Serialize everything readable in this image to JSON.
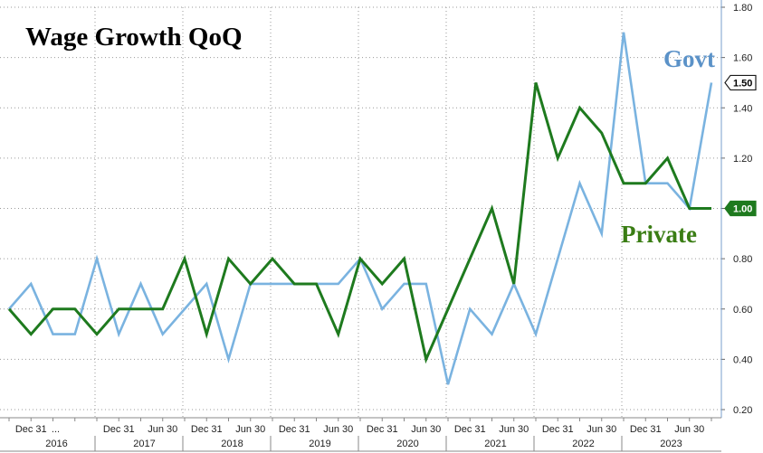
{
  "chart_data": {
    "type": "line",
    "title": "Wage Growth QoQ",
    "xlabel": "",
    "ylabel": "",
    "ylim": [
      0.2,
      1.8
    ],
    "yticks": [
      "0.20",
      "0.40",
      "0.60",
      "0.80",
      "1.00",
      "1.20",
      "1.40",
      "1.60",
      "1.80"
    ],
    "y_axis_side": "right",
    "grid": true,
    "x_tick_labels": [
      {
        "i": 1,
        "label": "Dec 31"
      },
      {
        "i": 2,
        "label": "..."
      },
      {
        "i": 5,
        "label": "Dec 31"
      },
      {
        "i": 7,
        "label": "Jun 30"
      },
      {
        "i": 9,
        "label": "Dec 31"
      },
      {
        "i": 11,
        "label": "Jun 30"
      },
      {
        "i": 13,
        "label": "Dec 31"
      },
      {
        "i": 15,
        "label": "Jun 30"
      },
      {
        "i": 17,
        "label": "Dec 31"
      },
      {
        "i": 19,
        "label": "Jun 30"
      },
      {
        "i": 21,
        "label": "Dec 31"
      },
      {
        "i": 23,
        "label": "Jun 30"
      },
      {
        "i": 25,
        "label": "Dec 31"
      },
      {
        "i": 27,
        "label": "Jun 30"
      },
      {
        "i": 29,
        "label": "Dec 31"
      },
      {
        "i": 31,
        "label": "Jun 30"
      }
    ],
    "year_labels": [
      {
        "start": 0,
        "end": 4,
        "label": "2016"
      },
      {
        "start": 4,
        "end": 8,
        "label": "2017"
      },
      {
        "start": 8,
        "end": 12,
        "label": "2018"
      },
      {
        "start": 12,
        "end": 16,
        "label": "2019"
      },
      {
        "start": 16,
        "end": 20,
        "label": "2020"
      },
      {
        "start": 20,
        "end": 24,
        "label": "2021"
      },
      {
        "start": 24,
        "end": 28,
        "label": "2022"
      },
      {
        "start": 28,
        "end": 32,
        "label": "2023"
      }
    ],
    "series": [
      {
        "name": "Govt",
        "color": "#7ab3e0",
        "values": [
          0.6,
          0.7,
          0.5,
          0.5,
          0.8,
          0.5,
          0.7,
          0.5,
          0.6,
          0.7,
          0.4,
          0.7,
          0.7,
          0.7,
          0.7,
          0.7,
          0.8,
          0.6,
          0.7,
          0.7,
          0.3,
          0.6,
          0.5,
          0.7,
          0.5,
          0.8,
          1.1,
          0.9,
          1.7,
          1.1,
          1.1,
          1.0,
          1.5
        ],
        "last_value_tag": "1.50"
      },
      {
        "name": "Private",
        "color": "#1e7a1e",
        "values": [
          0.6,
          0.5,
          0.6,
          0.6,
          0.5,
          0.6,
          0.6,
          0.6,
          0.8,
          0.5,
          0.8,
          0.7,
          0.8,
          0.7,
          0.7,
          0.5,
          0.8,
          0.7,
          0.8,
          0.4,
          0.6,
          0.8,
          1.0,
          0.7,
          1.5,
          1.2,
          1.4,
          1.3,
          1.1,
          1.1,
          1.2,
          1.0,
          1.0
        ],
        "last_value_tag": "1.00"
      }
    ]
  }
}
